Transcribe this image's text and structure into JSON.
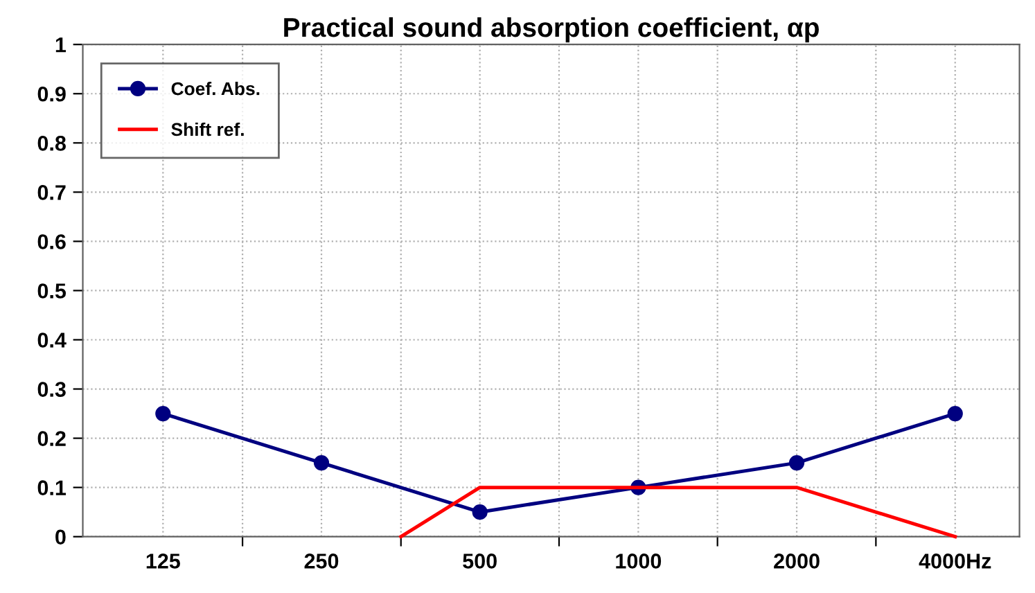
{
  "chart_data": {
    "type": "line",
    "title": "Practical sound absorption coefficient, αp",
    "log": "x",
    "xlim": [
      88,
      5300
    ],
    "xticks": [
      {
        "value": 125,
        "label": "125"
      },
      {
        "value": 177,
        "label": null
      },
      {
        "value": 250,
        "label": "250"
      },
      {
        "value": 354,
        "label": null
      },
      {
        "value": 500,
        "label": "500"
      },
      {
        "value": 707,
        "label": null
      },
      {
        "value": 1000,
        "label": "1000"
      },
      {
        "value": 1414,
        "label": null
      },
      {
        "value": 2000,
        "label": "2000"
      },
      {
        "value": 2828,
        "label": null
      },
      {
        "value": 4000,
        "label": "4000Hz"
      }
    ],
    "ylim": [
      0,
      1
    ],
    "yticks": [
      0,
      0.1,
      0.2,
      0.3,
      0.4,
      0.5,
      0.6,
      0.7,
      0.8,
      0.9,
      1
    ],
    "grid": true,
    "legend": "top left",
    "series": [
      {
        "name": "Coef. Abs.",
        "color": "#000080",
        "marker": "circle",
        "x": [
          125,
          250,
          500,
          1000,
          2000,
          4000
        ],
        "values": [
          0.25,
          0.15,
          0.05,
          0.1,
          0.15,
          0.25
        ]
      },
      {
        "name": "Shift ref.",
        "color": "#ff0000",
        "marker": "none",
        "x": [
          354,
          500,
          1000,
          2000,
          4000
        ],
        "values": [
          0,
          0.1,
          0.1,
          0.1,
          0
        ]
      }
    ]
  }
}
